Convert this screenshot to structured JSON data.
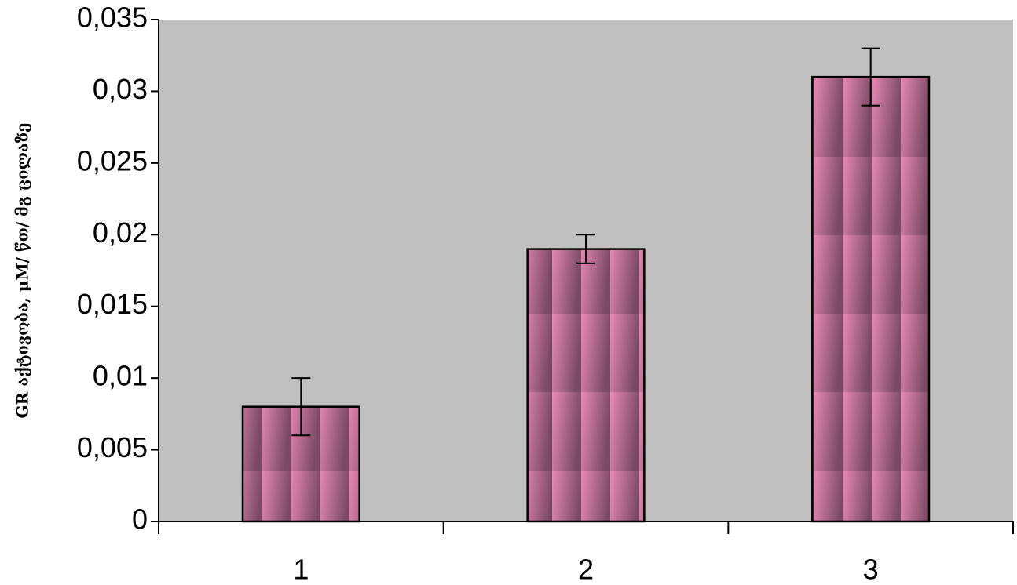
{
  "chart_data": {
    "type": "bar",
    "y_label": "GR აქტივობა, μM/ წთ/ მგ ცილაზე",
    "categories": [
      "1",
      "2",
      "3"
    ],
    "values": [
      0.008,
      0.019,
      0.031
    ],
    "errors": [
      0.002,
      0.001,
      0.002
    ],
    "color": "#e889b4",
    "plot_background": "#c0c0c0",
    "ylim": [
      0,
      0.035
    ],
    "yticks": [
      0,
      {
        "value": 0.005,
        "label": "0,005"
      },
      {
        "value": 0.01,
        "label": "0,01"
      },
      {
        "value": 0.015,
        "label": "0,015"
      },
      {
        "value": 0.02,
        "label": "0,02"
      },
      {
        "value": 0.025,
        "label": "0,025"
      },
      {
        "value": 0.03,
        "label": "0,03"
      },
      {
        "value": 0.035,
        "label": "0,035"
      }
    ],
    "grid": false
  }
}
